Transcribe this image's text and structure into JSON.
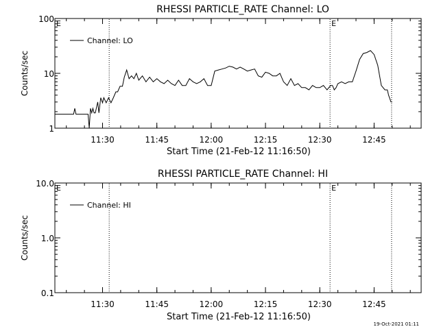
{
  "footer": {
    "timestamp": "19-Oct-2021 01:11"
  },
  "chart_data": [
    {
      "type": "line",
      "title": "RHESSI PARTICLE_RATE Channel: LO",
      "xlabel": "Start Time (21-Feb-12 11:16:50)",
      "ylabel": "Counts/sec",
      "y_scale": "log",
      "ylim": [
        1,
        100
      ],
      "y_ticks": [
        1,
        10,
        100
      ],
      "y_tick_labels": [
        "1",
        "10",
        "100"
      ],
      "xlim": [
        "11:16:50",
        "12:58:00"
      ],
      "x_ticks": [
        "11:30",
        "11:45",
        "12:00",
        "12:15",
        "12:30",
        "12:45"
      ],
      "x_tick_labels": [
        "11:30",
        "11:45",
        "12:00",
        "12:15",
        "12:30",
        "12:45"
      ],
      "grid": false,
      "legend_position": "top-left",
      "series": [
        {
          "name": "Channel: LO",
          "x": [
            "11:16:50",
            "11:20:00",
            "11:22:00",
            "11:22:20",
            "11:22:40",
            "11:25:00",
            "11:26:00",
            "11:26:20",
            "11:26:40",
            "11:27:00",
            "11:27:20",
            "11:27:40",
            "11:28:00",
            "11:28:40",
            "11:29:00",
            "11:29:30",
            "11:30:00",
            "11:30:20",
            "11:31:00",
            "11:31:40",
            "11:32:20",
            "11:33:00",
            "11:33:40",
            "11:34:10",
            "11:34:50",
            "11:35:30",
            "11:36:00",
            "11:36:40",
            "11:37:20",
            "11:38:00",
            "11:38:40",
            "11:39:20",
            "11:40:00",
            "11:41:00",
            "11:42:00",
            "11:43:00",
            "11:44:00",
            "11:45:00",
            "11:46:00",
            "11:47:00",
            "11:48:00",
            "11:49:00",
            "11:50:00",
            "11:51:00",
            "11:52:00",
            "11:53:00",
            "11:54:00",
            "11:55:00",
            "11:56:00",
            "11:57:00",
            "11:58:00",
            "11:59:00",
            "12:00:00",
            "12:01:00",
            "12:02:00",
            "12:03:00",
            "12:04:00",
            "12:05:00",
            "12:06:00",
            "12:07:00",
            "12:08:00",
            "12:09:00",
            "12:10:00",
            "12:11:00",
            "12:12:00",
            "12:13:00",
            "12:14:00",
            "12:15:00",
            "12:16:00",
            "12:17:00",
            "12:18:00",
            "12:19:00",
            "12:20:00",
            "12:21:00",
            "12:22:00",
            "12:23:00",
            "12:24:00",
            "12:25:00",
            "12:26:00",
            "12:27:00",
            "12:28:00",
            "12:29:00",
            "12:30:00",
            "12:31:00",
            "12:32:00",
            "12:33:00",
            "12:33:30",
            "12:34:00",
            "12:34:30",
            "12:35:00",
            "12:36:00",
            "12:37:00",
            "12:38:00",
            "12:39:00",
            "12:40:00",
            "12:41:00",
            "12:42:00",
            "12:43:00",
            "12:44:00",
            "12:45:00",
            "12:46:00",
            "12:47:00",
            "12:48:00",
            "12:48:40",
            "12:49:00",
            "12:49:40",
            "12:50:00"
          ],
          "y": [
            1.8,
            1.8,
            1.8,
            2.3,
            1.8,
            1.8,
            1.8,
            1.0,
            2.3,
            1.9,
            2.3,
            1.9,
            1.9,
            3.0,
            1.9,
            3.6,
            2.9,
            3.6,
            2.9,
            3.6,
            2.9,
            3.6,
            4.6,
            4.6,
            5.8,
            5.8,
            8.5,
            11.5,
            8.0,
            9.0,
            8.0,
            10.0,
            7.5,
            9.0,
            7.0,
            8.5,
            7.0,
            8.0,
            7.0,
            6.5,
            7.5,
            6.5,
            6.0,
            7.5,
            6.0,
            6.0,
            8.0,
            7.0,
            6.5,
            7.0,
            8.0,
            6.0,
            6.0,
            11.0,
            11.5,
            12.0,
            12.5,
            13.5,
            13.0,
            12.0,
            13.0,
            12.0,
            11.0,
            11.5,
            12.0,
            9.0,
            8.5,
            10.5,
            10.0,
            9.0,
            9.0,
            10.0,
            7.0,
            6.0,
            8.0,
            6.0,
            6.5,
            5.5,
            5.5,
            5.0,
            6.0,
            5.5,
            5.5,
            6.0,
            5.0,
            6.0,
            6.0,
            5.0,
            5.5,
            6.5,
            7.0,
            6.5,
            7.0,
            7.0,
            11.0,
            18.0,
            23.0,
            24.0,
            26.0,
            22.0,
            14.0,
            6.0,
            5.0,
            5.0,
            4.0,
            3.0,
            3.0
          ]
        }
      ],
      "annotations": [
        {
          "type": "vline",
          "x": "11:31:50",
          "style": "dotted"
        },
        {
          "type": "vline",
          "x": "12:32:50",
          "style": "dotted",
          "label": "E"
        },
        {
          "type": "vline",
          "x": "12:49:50",
          "style": "dotted"
        },
        {
          "type": "text",
          "x": "11:16:50",
          "label": "E"
        }
      ]
    },
    {
      "type": "line",
      "title": "RHESSI PARTICLE_RATE Channel: HI",
      "xlabel": "Start Time (21-Feb-12 11:16:50)",
      "ylabel": "Counts/sec",
      "y_scale": "log",
      "ylim": [
        0.1,
        10
      ],
      "y_ticks": [
        0.1,
        1,
        10
      ],
      "y_tick_labels": [
        "0.1",
        "1.0",
        "10.0"
      ],
      "xlim": [
        "11:16:50",
        "12:58:00"
      ],
      "x_ticks": [
        "11:30",
        "11:45",
        "12:00",
        "12:15",
        "12:30",
        "12:45"
      ],
      "x_tick_labels": [
        "11:30",
        "11:45",
        "12:00",
        "12:15",
        "12:30",
        "12:45"
      ],
      "grid": false,
      "legend_position": "top-left",
      "series": [
        {
          "name": "Channel: HI",
          "x": [],
          "y": []
        }
      ],
      "annotations": [
        {
          "type": "vline",
          "x": "11:31:50",
          "style": "dotted"
        },
        {
          "type": "vline",
          "x": "12:32:50",
          "style": "dotted",
          "label": "E"
        },
        {
          "type": "vline",
          "x": "12:49:50",
          "style": "dotted"
        },
        {
          "type": "text",
          "x": "11:16:50",
          "label": "E"
        }
      ]
    }
  ]
}
